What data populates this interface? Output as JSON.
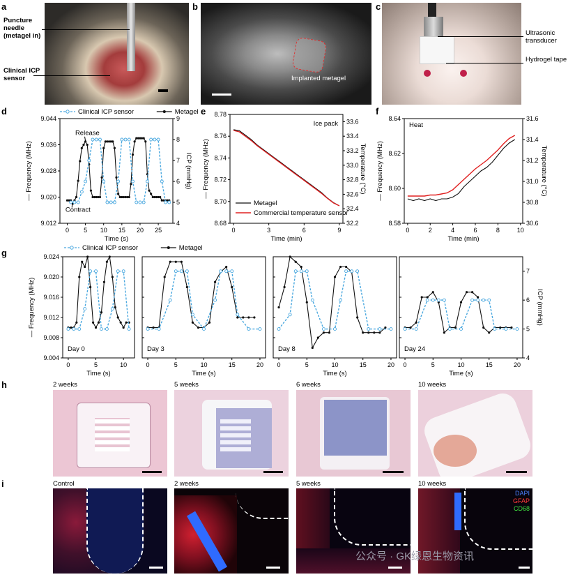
{
  "panels": {
    "a": {
      "letter": "a",
      "labels": [
        "Puncture needle (metagel in)",
        "Clinical ICP sensor"
      ]
    },
    "b": {
      "letter": "b",
      "labels": [
        "Implanted metagel"
      ]
    },
    "c": {
      "letter": "c",
      "labels": [
        "Ultrasonic transducer",
        "Hydrogel tape"
      ]
    },
    "d": {
      "letter": "d",
      "legend": [
        "Clinical ICP sensor",
        "Metagel"
      ],
      "annotations": [
        "Release",
        "Contract"
      ],
      "ylabel_left": "Frequency (MHz)",
      "ylabel_right": "ICP (mmHg)",
      "xlabel": "Time (s)"
    },
    "e": {
      "letter": "e",
      "legend": [
        "Metagel",
        "Commercial temperature sensor"
      ],
      "title": "Ice pack",
      "ylabel_left": "Frequency (MHz)",
      "ylabel_right": "Temperature (°C)",
      "xlabel": "Time (min)"
    },
    "f": {
      "letter": "f",
      "title": "Heat",
      "ylabel_left": "Frequency (MHz)",
      "ylabel_right": "Temperature (°C)",
      "xlabel": "Time (min)"
    },
    "g": {
      "letter": "g",
      "legend": [
        "Clinical ICP sensor",
        "Metagel"
      ],
      "days": [
        "Day 0",
        "Day 3",
        "Day 8",
        "Day 24"
      ],
      "ylabel_left": "Frequency (MHz)",
      "ylabel_right": "ICP (mmHg)",
      "xlabel": "Time (s)"
    },
    "h": {
      "letter": "h",
      "captions": [
        "2 weeks",
        "5 weeks",
        "6 weeks",
        "10 weeks"
      ]
    },
    "i": {
      "letter": "i",
      "captions": [
        "Control",
        "2 weeks",
        "5 weeks",
        "10 weeks"
      ],
      "stains": [
        "DAPI",
        "GFAP",
        "CD68"
      ]
    }
  },
  "watermark": "公众号 · GK绿恩生物资讯",
  "colors": {
    "metagel": "#111111",
    "clinical": "#4aa8df",
    "temp": "#e02020",
    "dapi": "#2f6bff",
    "gfap": "#ff3030",
    "cd68": "#30d030"
  },
  "chart_data": [
    {
      "id": "d",
      "type": "line",
      "xlim": [
        -2,
        29
      ],
      "ylim_left": [
        9.012,
        9.044
      ],
      "ylim_right": [
        4,
        9
      ],
      "xticks": [
        0,
        5,
        10,
        15,
        20,
        25
      ],
      "yticks_left": [
        9.012,
        9.02,
        9.028,
        9.036,
        9.044
      ],
      "yticks_right": [
        4,
        5,
        6,
        7,
        8,
        9
      ],
      "series": [
        {
          "name": "Metagel",
          "axis": "left",
          "x": [
            0,
            0.5,
            1,
            1.5,
            2,
            2.5,
            3,
            3.5,
            4,
            4.5,
            5,
            5.5,
            6,
            6.5,
            7,
            7.5,
            8,
            8.5,
            9,
            9.5,
            10,
            10.5,
            11,
            11.5,
            12,
            12.5,
            13,
            13.5,
            14,
            14.5,
            15,
            15.5,
            16,
            16.5,
            17,
            17.5,
            18,
            18.5,
            19,
            19.5,
            20,
            20.5,
            21,
            21.5,
            22,
            22.5,
            23,
            23.5,
            24,
            24.5,
            25,
            25.5,
            26,
            26.5,
            27,
            27.5,
            28
          ],
          "y": [
            9.019,
            9.019,
            9.019,
            9.018,
            9.019,
            9.02,
            9.025,
            9.031,
            9.035,
            9.036,
            9.037,
            9.036,
            9.03,
            9.022,
            9.02,
            9.02,
            9.02,
            9.02,
            9.02,
            9.026,
            9.035,
            9.037,
            9.037,
            9.037,
            9.037,
            9.037,
            9.035,
            9.026,
            9.021,
            9.02,
            9.02,
            9.02,
            9.02,
            9.02,
            9.02,
            9.024,
            9.033,
            9.037,
            9.038,
            9.038,
            9.038,
            9.038,
            9.038,
            9.037,
            9.027,
            9.022,
            9.021,
            9.02,
            9.02,
            9.02,
            9.02,
            9.02,
            9.019,
            9.019,
            9.019,
            9.019,
            9.019
          ]
        },
        {
          "name": "Clinical ICP sensor",
          "axis": "right",
          "x": [
            1,
            2,
            3,
            4,
            5,
            6,
            7,
            8,
            9,
            10,
            11,
            12,
            13,
            14,
            15,
            16,
            17,
            18,
            19,
            20,
            21,
            22,
            23,
            24,
            25,
            26,
            27,
            28
          ],
          "y": [
            5,
            5,
            5,
            5.5,
            6,
            7,
            8,
            8,
            8,
            6,
            5,
            5,
            5,
            6,
            8,
            8,
            8,
            6,
            5,
            5,
            5,
            6,
            8,
            8,
            8,
            6,
            5,
            5
          ]
        }
      ]
    },
    {
      "id": "e",
      "type": "line",
      "xlim": [
        -0.3,
        9.3
      ],
      "ylim_left": [
        8.68,
        8.78
      ],
      "ylim_right": [
        32.2,
        33.7
      ],
      "xticks": [
        0,
        3,
        6,
        9
      ],
      "yticks_left": [
        8.68,
        8.7,
        8.72,
        8.74,
        8.76,
        8.78
      ],
      "yticks_right": [
        32.2,
        32.4,
        32.6,
        32.8,
        33.0,
        33.2,
        33.4,
        33.6
      ],
      "series": [
        {
          "name": "Metagel",
          "axis": "left",
          "x": [
            0,
            0.5,
            1,
            1.5,
            2,
            2.5,
            3,
            3.5,
            4,
            4.5,
            5,
            5.5,
            6,
            6.5,
            7,
            7.5,
            8,
            8.5,
            9
          ],
          "y": [
            8.766,
            8.765,
            8.761,
            8.757,
            8.752,
            8.748,
            8.744,
            8.74,
            8.736,
            8.732,
            8.728,
            8.724,
            8.72,
            8.716,
            8.712,
            8.708,
            8.703,
            8.699,
            8.696
          ]
        },
        {
          "name": "Commercial temperature sensor",
          "axis": "right",
          "x": [
            0,
            0.5,
            1,
            1.5,
            2,
            2.5,
            3,
            3.5,
            4,
            4.5,
            5,
            5.5,
            6,
            6.5,
            7,
            7.5,
            8,
            8.5,
            9
          ],
          "y": [
            33.48,
            33.46,
            33.4,
            33.34,
            33.27,
            33.21,
            33.15,
            33.09,
            33.03,
            32.97,
            32.91,
            32.85,
            32.79,
            32.73,
            32.67,
            32.61,
            32.54,
            32.48,
            32.44
          ]
        }
      ]
    },
    {
      "id": "f",
      "type": "line",
      "xlim": [
        -0.3,
        10.2
      ],
      "ylim_left": [
        8.58,
        8.64
      ],
      "ylim_right": [
        30.6,
        31.6
      ],
      "xticks": [
        0,
        2,
        4,
        6,
        8,
        10
      ],
      "yticks_left": [
        8.58,
        8.6,
        8.62,
        8.64
      ],
      "yticks_right": [
        30.6,
        30.8,
        31.0,
        31.2,
        31.4,
        31.6
      ],
      "series": [
        {
          "name": "Metagel",
          "axis": "left",
          "x": [
            0,
            0.5,
            1,
            1.5,
            2,
            2.5,
            3,
            3.5,
            4,
            4.5,
            5,
            5.5,
            6,
            6.5,
            7,
            7.5,
            8,
            8.5,
            9,
            9.5
          ],
          "y": [
            8.594,
            8.593,
            8.594,
            8.593,
            8.594,
            8.593,
            8.594,
            8.594,
            8.595,
            8.597,
            8.601,
            8.604,
            8.607,
            8.61,
            8.612,
            8.615,
            8.619,
            8.623,
            8.626,
            8.628
          ]
        },
        {
          "name": "Commercial temperature sensor",
          "axis": "right",
          "x": [
            0,
            0.5,
            1,
            1.5,
            2,
            2.5,
            3,
            3.5,
            4,
            4.5,
            5,
            5.5,
            6,
            6.5,
            7,
            7.5,
            8,
            8.5,
            9,
            9.5
          ],
          "y": [
            30.86,
            30.86,
            30.86,
            30.86,
            30.87,
            30.87,
            30.88,
            30.89,
            30.92,
            30.97,
            31.02,
            31.07,
            31.12,
            31.16,
            31.2,
            31.25,
            31.3,
            31.36,
            31.41,
            31.44
          ]
        }
      ]
    },
    {
      "id": "g-day0",
      "type": "line",
      "xlim": [
        -1,
        12
      ],
      "ylim_left": [
        9.004,
        9.024
      ],
      "ylim_right": [
        4,
        7.5
      ],
      "xticks": [
        0,
        5,
        10
      ],
      "yticks_left": [
        9.004,
        9.008,
        9.012,
        9.016,
        9.02,
        9.024
      ],
      "yticks_right": [
        4,
        5,
        6,
        7
      ],
      "series": [
        {
          "name": "Metagel",
          "axis": "left",
          "x": [
            0,
            0.5,
            1,
            1.5,
            2,
            2.5,
            3,
            3.5,
            4,
            4.5,
            5,
            5.5,
            6,
            6.5,
            7,
            7.5,
            8,
            8.5,
            9,
            9.5,
            10,
            10.5,
            11
          ],
          "y": [
            9.01,
            9.01,
            9.01,
            9.011,
            9.02,
            9.023,
            9.022,
            9.024,
            9.018,
            9.011,
            9.01,
            9.011,
            9.013,
            9.019,
            9.023,
            9.024,
            9.02,
            9.014,
            9.012,
            9.011,
            9.01,
            9.011,
            9.011
          ]
        },
        {
          "name": "Clinical ICP sensor",
          "axis": "right",
          "x": [
            0,
            1,
            2,
            3,
            4,
            5,
            6,
            7,
            8,
            9,
            10,
            11
          ],
          "y": [
            5,
            5,
            5,
            5.7,
            7,
            7,
            5,
            5,
            5.7,
            7,
            7,
            5
          ]
        }
      ]
    },
    {
      "id": "g-day3",
      "type": "line",
      "xlim": [
        -1,
        21
      ],
      "ylim_left": [
        9.004,
        9.024
      ],
      "ylim_right": [
        4,
        7.5
      ],
      "xticks": [
        0,
        5,
        10,
        15,
        20
      ],
      "yticks_left": [
        9.004,
        9.008,
        9.012,
        9.016,
        9.02,
        9.024
      ],
      "yticks_right": [
        4,
        5,
        6,
        7
      ],
      "series": [
        {
          "name": "Metagel",
          "axis": "left",
          "x": [
            0,
            1,
            2,
            3,
            4,
            5,
            6,
            7,
            8,
            9,
            10,
            11,
            12,
            13,
            14,
            15,
            16,
            17,
            18,
            19
          ],
          "y": [
            9.01,
            9.01,
            9.01,
            9.02,
            9.023,
            9.023,
            9.023,
            9.018,
            9.011,
            9.01,
            9.01,
            9.011,
            9.019,
            9.021,
            9.022,
            9.018,
            9.012,
            9.012,
            9.012,
            9.012
          ]
        },
        {
          "name": "Clinical ICP sensor",
          "axis": "right",
          "x": [
            0,
            2,
            4,
            5,
            6,
            7,
            8,
            10,
            12,
            13,
            14,
            15,
            16,
            18,
            20
          ],
          "y": [
            5,
            5,
            6,
            7,
            7,
            7,
            5.5,
            5,
            6,
            7,
            7,
            7,
            5.5,
            5,
            5
          ]
        }
      ]
    },
    {
      "id": "g-day8",
      "type": "line",
      "xlim": [
        -1,
        21
      ],
      "ylim_left": [
        9.004,
        9.024
      ],
      "ylim_right": [
        4,
        7.5
      ],
      "xticks": [
        0,
        5,
        10,
        15,
        20
      ],
      "yticks_left": [
        9.004,
        9.008,
        9.012,
        9.016,
        9.02,
        9.024
      ],
      "yticks_right": [
        4,
        5,
        6,
        7
      ],
      "series": [
        {
          "name": "Metagel",
          "axis": "left",
          "x": [
            0,
            1,
            2,
            3,
            4,
            5,
            6,
            7,
            8,
            9,
            10,
            11,
            12,
            13,
            14,
            15,
            16,
            17,
            18,
            19
          ],
          "y": [
            9.014,
            9.018,
            9.024,
            9.023,
            9.022,
            9.015,
            9.006,
            9.008,
            9.009,
            9.009,
            9.02,
            9.022,
            9.022,
            9.021,
            9.012,
            9.009,
            9.009,
            9.009,
            9.009,
            9.01
          ]
        },
        {
          "name": "Clinical ICP sensor",
          "axis": "right",
          "x": [
            0,
            2,
            3,
            4,
            5,
            6,
            8,
            10,
            11,
            12,
            13,
            14,
            16,
            18,
            20
          ],
          "y": [
            5,
            5.5,
            7,
            7,
            7,
            6,
            5,
            5,
            6,
            7,
            7,
            7,
            5,
            5,
            5
          ]
        }
      ]
    },
    {
      "id": "g-day24",
      "type": "line",
      "xlim": [
        -1,
        21
      ],
      "ylim_left": [
        9.004,
        9.024
      ],
      "ylim_right": [
        4,
        7.5
      ],
      "xticks": [
        0,
        5,
        10,
        15,
        20
      ],
      "yticks_left": [
        9.004,
        9.008,
        9.012,
        9.016,
        9.02,
        9.024
      ],
      "yticks_right": [
        4,
        5,
        6,
        7
      ],
      "series": [
        {
          "name": "Metagel",
          "axis": "left",
          "x": [
            0,
            1,
            2,
            3,
            4,
            5,
            6,
            7,
            8,
            9,
            10,
            11,
            12,
            13,
            14,
            15,
            16,
            17,
            18,
            19
          ],
          "y": [
            9.01,
            9.01,
            9.011,
            9.016,
            9.016,
            9.017,
            9.015,
            9.009,
            9.01,
            9.01,
            9.015,
            9.017,
            9.017,
            9.016,
            9.01,
            9.009,
            9.01,
            9.01,
            9.01,
            9.01
          ]
        },
        {
          "name": "Clinical ICP sensor",
          "axis": "right",
          "x": [
            0,
            2,
            4,
            5,
            6,
            7,
            8,
            10,
            12,
            13,
            14,
            15,
            16,
            18,
            20
          ],
          "y": [
            5,
            5,
            6,
            6,
            6,
            6,
            5,
            5,
            6,
            6,
            6,
            6,
            5,
            5,
            5
          ]
        }
      ]
    }
  ]
}
